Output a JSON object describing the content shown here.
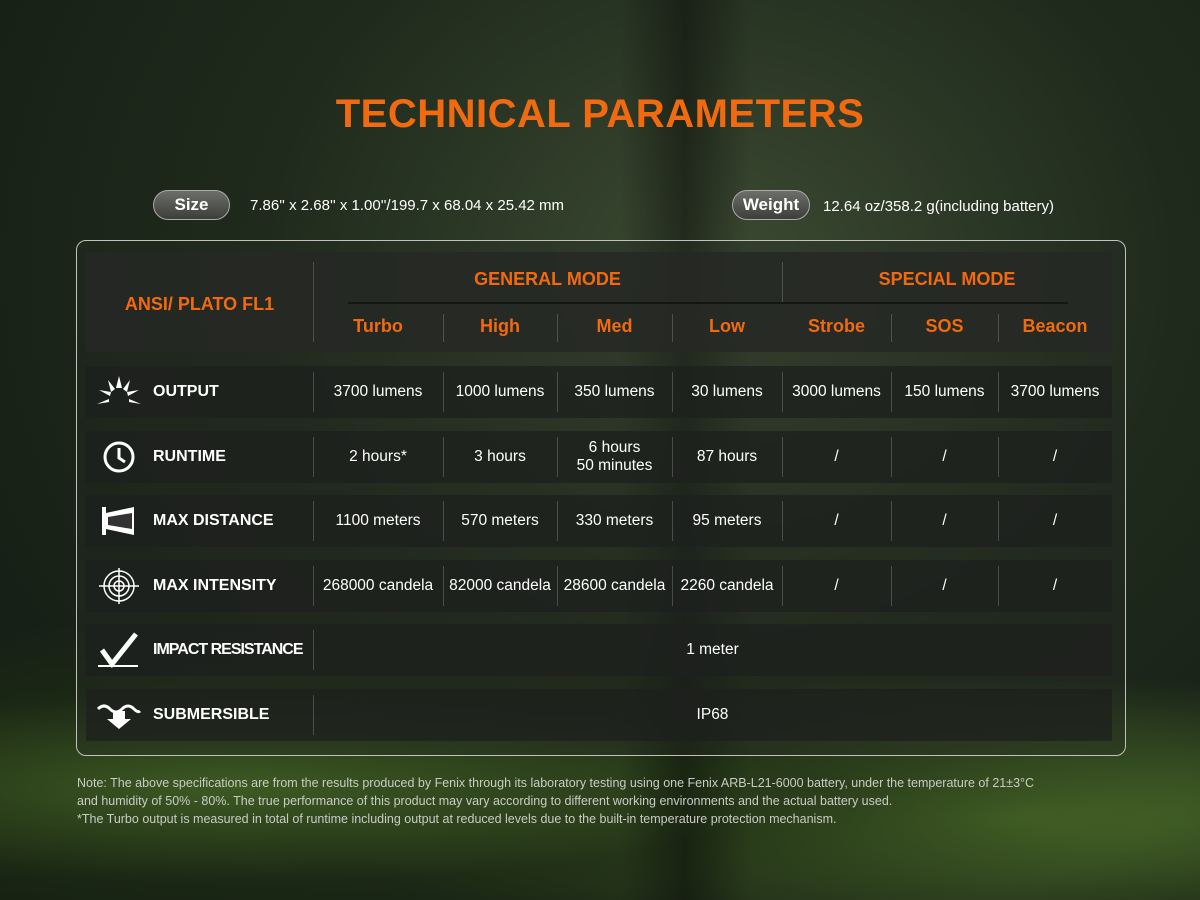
{
  "title": "TECHNICAL PARAMETERS",
  "size": {
    "label": "Size",
    "value": "7.86'' x 2.68'' x 1.00''/199.7 x 68.04 x 25.42 mm"
  },
  "weight": {
    "label": "Weight",
    "value": "12.64 oz/358.2 g(including battery)"
  },
  "table": {
    "standard": "ANSI/ PLATO  FL1",
    "groups": [
      "GENERAL MODE",
      "SPECIAL MODE"
    ],
    "modes": [
      "Turbo",
      "High",
      "Med",
      "Low",
      "Strobe",
      "SOS",
      "Beacon"
    ],
    "rows": [
      {
        "icon": "sunburst-icon",
        "label": "OUTPUT",
        "values": [
          "3700 lumens",
          "1000 lumens",
          "350 lumens",
          "30 lumens",
          "3000 lumens",
          "150 lumens",
          "3700 lumens"
        ]
      },
      {
        "icon": "clock-icon",
        "label": "RUNTIME",
        "values": [
          "2 hours*",
          "3 hours",
          "6 hours\n50 minutes",
          "87 hours",
          "/",
          "/",
          "/"
        ]
      },
      {
        "icon": "beam-distance-icon",
        "label": "MAX DISTANCE",
        "values": [
          "1100 meters",
          "570 meters",
          "330 meters",
          "95 meters",
          "/",
          "/",
          "/"
        ]
      },
      {
        "icon": "target-icon",
        "label": "MAX INTENSITY",
        "values": [
          "268000 candela",
          "82000 candela",
          "28600 candela",
          "2260 candela",
          "/",
          "/",
          "/"
        ]
      },
      {
        "icon": "impact-icon",
        "label": "IMPACT RESISTANCE",
        "values": [
          "1 meter"
        ]
      },
      {
        "icon": "submersible-icon",
        "label": "SUBMERSIBLE",
        "values": [
          "IP68"
        ]
      }
    ]
  },
  "notes": [
    "Note: The above specifications are from the results produced by Fenix through its laboratory testing using one Fenix ARB-L21-6000 battery, under the temperature of 21±3°C",
    "and humidity of 50% - 80%. The true performance of this product may vary according to different working environments and the actual battery used.",
    "*The Turbo output is measured in total of runtime including output at reduced levels due to the built-in temperature protection mechanism."
  ],
  "colors": {
    "accent": "#f26a10"
  }
}
